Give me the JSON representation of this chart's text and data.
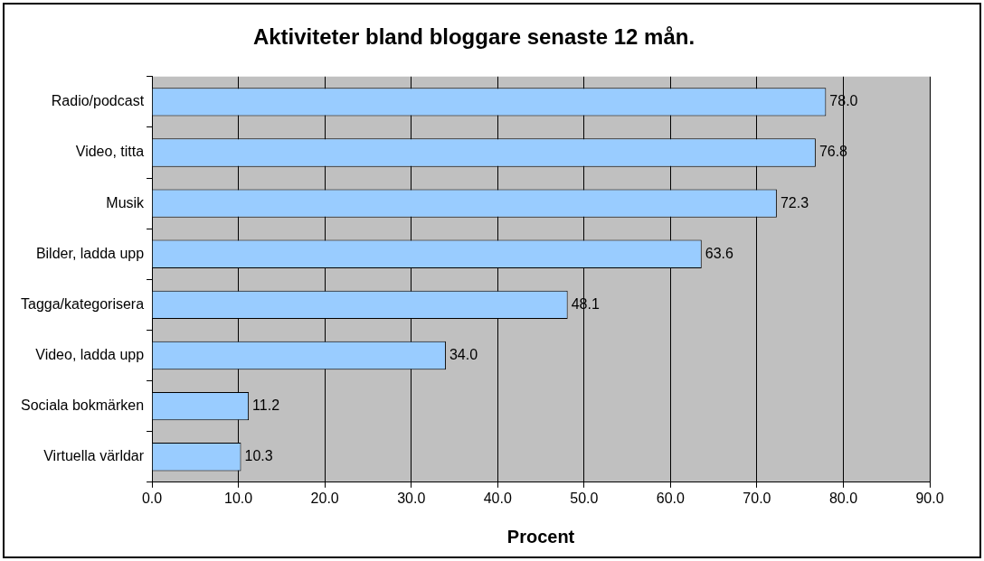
{
  "chart_data": {
    "type": "bar",
    "orientation": "horizontal",
    "title": "Aktiviteter bland bloggare senaste 12 mån.",
    "xlabel": "Procent",
    "categories": [
      "Radio/podcast",
      "Video, titta",
      "Musik",
      "Bilder, ladda upp",
      "Tagga/kategorisera",
      "Video, ladda upp",
      "Sociala bokmärken",
      "Virtuella världar"
    ],
    "values": [
      78.0,
      76.8,
      72.3,
      63.6,
      48.1,
      34.0,
      11.2,
      10.3
    ],
    "value_labels": [
      "78.0",
      "76.8",
      "72.3",
      "63.6",
      "48.1",
      "34.0",
      "11.2",
      "10.3"
    ],
    "color": "#99ccff",
    "xlim": [
      0,
      90
    ],
    "xticks": [
      {
        "value": 0,
        "label": "0.0"
      },
      {
        "value": 10,
        "label": "10.0"
      },
      {
        "value": 20,
        "label": "20.0"
      },
      {
        "value": 30,
        "label": "30.0"
      },
      {
        "value": 40,
        "label": "40.0"
      },
      {
        "value": 50,
        "label": "50.0"
      },
      {
        "value": 60,
        "label": "60.0"
      },
      {
        "value": 70,
        "label": "70.0"
      },
      {
        "value": 80,
        "label": "80.0"
      },
      {
        "value": 90,
        "label": "90.0"
      }
    ],
    "grid": "x",
    "legend": false
  }
}
